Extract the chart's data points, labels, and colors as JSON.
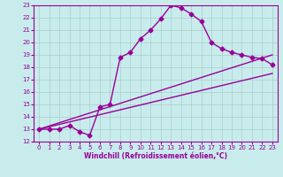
{
  "xlabel": "Windchill (Refroidissement éolien,°C)",
  "bg_color": "#c8ecec",
  "line_color": "#990099",
  "grid_color": "#aacccc",
  "xlim": [
    -0.5,
    23.5
  ],
  "ylim": [
    12,
    23
  ],
  "xticks": [
    0,
    1,
    2,
    3,
    4,
    5,
    6,
    7,
    8,
    9,
    10,
    11,
    12,
    13,
    14,
    15,
    16,
    17,
    18,
    19,
    20,
    21,
    22,
    23
  ],
  "yticks": [
    12,
    13,
    14,
    15,
    16,
    17,
    18,
    19,
    20,
    21,
    22,
    23
  ],
  "line1_x": [
    0,
    1,
    2,
    3,
    4,
    5,
    6,
    7,
    8,
    9,
    10,
    11,
    12,
    13,
    14,
    15,
    16,
    17,
    18,
    19,
    20,
    21,
    22,
    23
  ],
  "line1_y": [
    13.0,
    13.0,
    13.0,
    13.3,
    12.8,
    12.5,
    14.8,
    15.0,
    18.8,
    19.2,
    20.3,
    21.0,
    21.9,
    23.0,
    22.8,
    22.3,
    21.7,
    20.0,
    19.5,
    19.2,
    19.0,
    18.8,
    18.7,
    18.2
  ],
  "line2_x": [
    0,
    23
  ],
  "line2_y": [
    13.0,
    19.0
  ],
  "line3_x": [
    0,
    23
  ],
  "line3_y": [
    13.0,
    17.5
  ],
  "marker": "D",
  "markersize": 2.5,
  "linewidth": 1.0,
  "tick_fontsize": 5.0,
  "xlabel_fontsize": 5.5
}
